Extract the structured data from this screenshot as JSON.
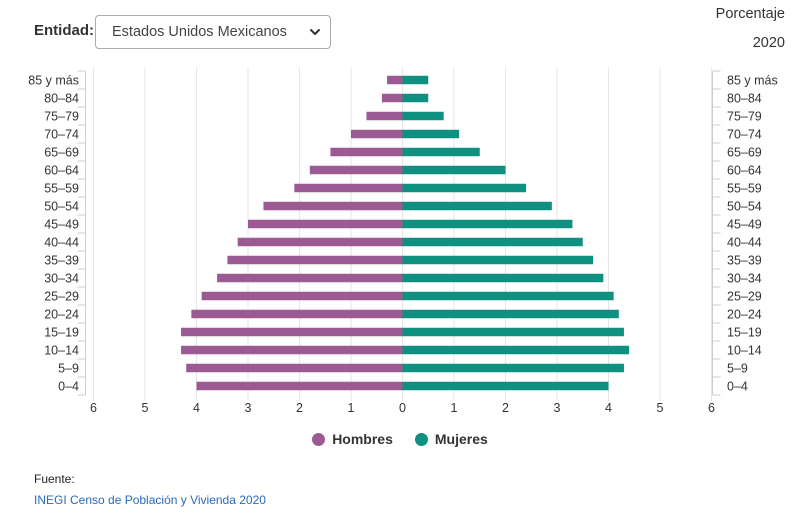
{
  "filter": {
    "label": "Entidad:",
    "selected": "Estados Unidos Mexicanos"
  },
  "header": {
    "unit": "Porcentaje",
    "year": "2020"
  },
  "colors": {
    "hombres": "#9b5a94",
    "mujeres": "#0f9080",
    "axis": "#cccccc",
    "grid": "#e6e6e6"
  },
  "chart_data": {
    "type": "bar",
    "orientation": "horizontal-pyramid",
    "categories": [
      "0–4",
      "5–9",
      "10–14",
      "15–19",
      "20–24",
      "25–29",
      "30–34",
      "35–39",
      "40–44",
      "45–49",
      "50–54",
      "55–59",
      "60–64",
      "65–69",
      "70–74",
      "75–79",
      "80–84",
      "85 y más"
    ],
    "series": [
      {
        "name": "Hombres",
        "side": "left",
        "values": [
          4.0,
          4.2,
          4.3,
          4.3,
          4.1,
          3.9,
          3.6,
          3.4,
          3.2,
          3.0,
          2.7,
          2.1,
          1.8,
          1.4,
          1.0,
          0.7,
          0.4,
          0.3
        ]
      },
      {
        "name": "Mujeres",
        "side": "right",
        "values": [
          4.0,
          4.3,
          4.4,
          4.3,
          4.2,
          4.1,
          3.9,
          3.7,
          3.5,
          3.3,
          2.9,
          2.4,
          2.0,
          1.5,
          1.1,
          0.8,
          0.5,
          0.5
        ]
      }
    ],
    "xticks": [
      "6",
      "5",
      "4",
      "3",
      "2",
      "1",
      "0",
      "1",
      "2",
      "3",
      "4",
      "5",
      "6"
    ],
    "xlim": [
      -6,
      6
    ],
    "grid": true,
    "legend": "bottom-center"
  },
  "source": {
    "title": "Fuente:",
    "link_text": "INEGI Censo de Población y Vivienda 2020"
  }
}
